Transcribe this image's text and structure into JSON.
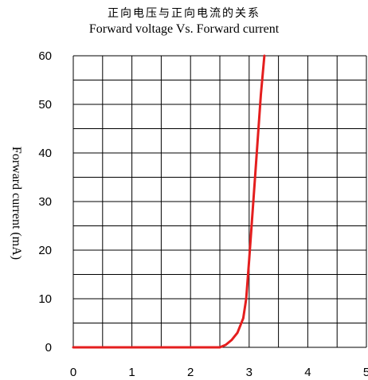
{
  "chart_data": {
    "type": "line",
    "title": "正向电压与正向电流的关系",
    "subtitle": "Forward voltage Vs. Forward current",
    "xlabel": "",
    "ylabel": "Forward current (mA)",
    "xlim": [
      0,
      5
    ],
    "ylim": [
      0,
      60
    ],
    "xticks": [
      "0",
      "1",
      "2",
      "3",
      "4",
      "5"
    ],
    "yticks": [
      "0",
      "10",
      "20",
      "30",
      "40",
      "50",
      "60"
    ],
    "grid": true,
    "x_grid_step": 0.5,
    "y_grid_step": 5,
    "series": [
      {
        "color": "#e41e1e",
        "x": [
          0,
          2.5,
          2.6,
          2.7,
          2.8,
          2.9,
          2.95,
          3.0,
          3.1,
          3.2,
          3.26
        ],
        "y": [
          0,
          0,
          0.5,
          1.5,
          3,
          6,
          10,
          18,
          35,
          52,
          60
        ]
      }
    ]
  }
}
